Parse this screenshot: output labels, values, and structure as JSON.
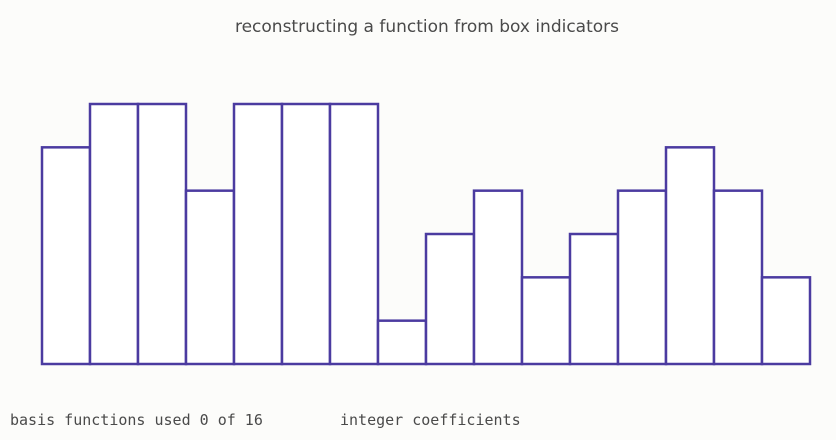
{
  "chart_data": {
    "type": "bar",
    "title": "reconstructing a function from box indicators",
    "values": [
      5,
      6,
      6,
      4,
      6,
      6,
      6,
      1,
      3,
      4,
      2,
      3,
      4,
      5,
      4,
      2
    ],
    "ylim": [
      0,
      6
    ],
    "grid": false,
    "bar_outline_color": "#4b3ba0",
    "bar_fill_color": "#ffffff"
  },
  "status": {
    "used_label": "basis functions used 0 of 16",
    "coefficients_label": "integer coefficients"
  }
}
